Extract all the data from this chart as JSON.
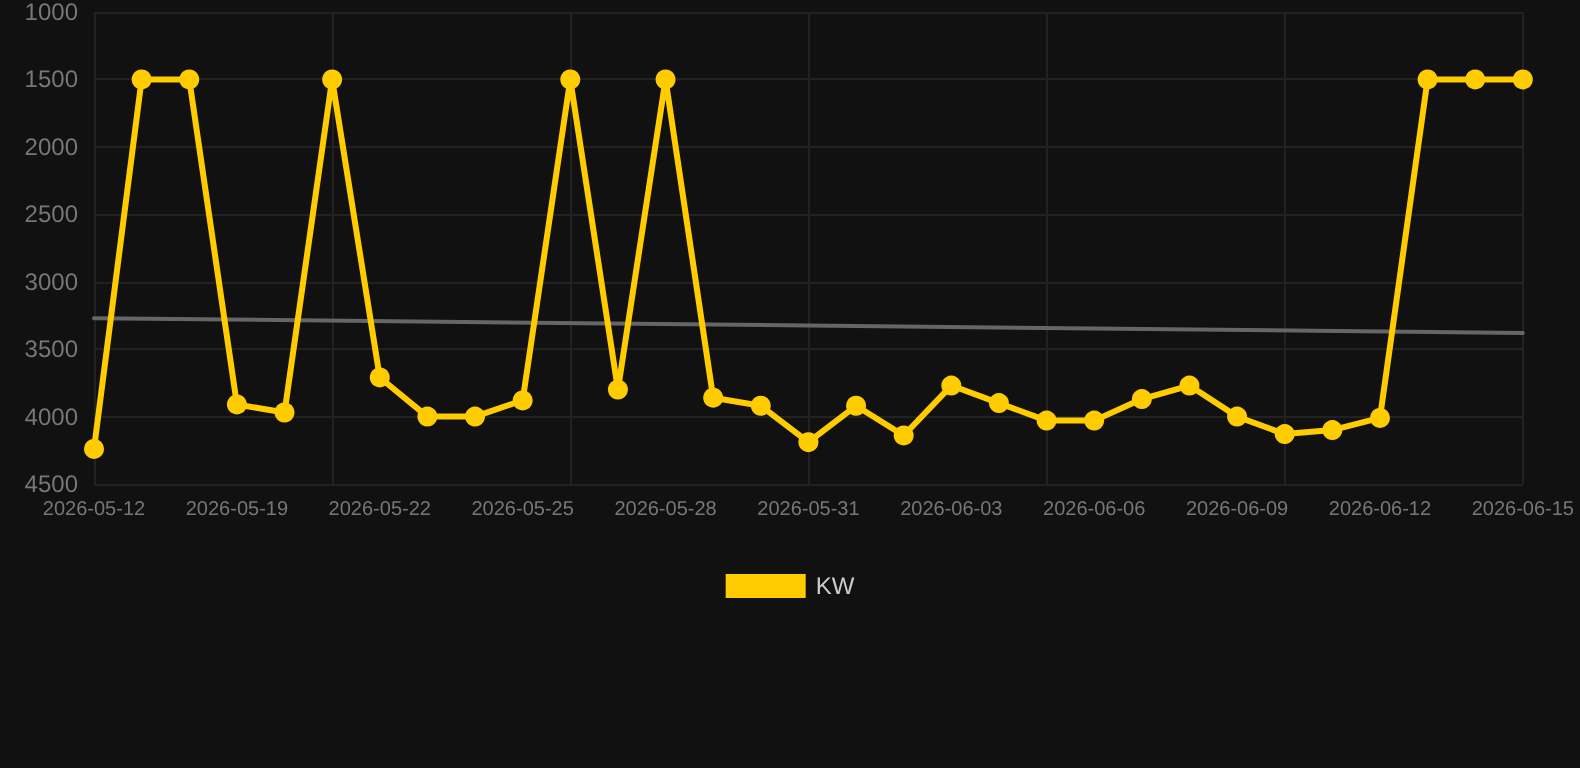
{
  "chart_data": {
    "type": "line",
    "categories": [
      "2026-05-12",
      null,
      null,
      "2026-05-19",
      null,
      null,
      "2026-05-22",
      null,
      null,
      "2026-05-25",
      null,
      null,
      "2026-05-28",
      null,
      null,
      "2026-05-31",
      null,
      null,
      "2026-06-03",
      null,
      null,
      "2026-06-06",
      null,
      null,
      "2026-06-09",
      null,
      null,
      "2026-06-12",
      null,
      null,
      "2026-06-15"
    ],
    "series": [
      {
        "name": "KW",
        "color": "#ffcc00",
        "values": [
          4240,
          1500,
          1500,
          3910,
          3970,
          1500,
          3710,
          4000,
          4000,
          3880,
          1500,
          3800,
          1500,
          3860,
          3920,
          4190,
          3920,
          4140,
          3770,
          3900,
          4030,
          4030,
          3870,
          3770,
          4000,
          4130,
          4100,
          4010,
          1500,
          1500,
          1500
        ]
      },
      {
        "type": "line",
        "color": "#666666",
        "marker": "none",
        "values": [
          3270,
          null,
          null,
          null,
          null,
          null,
          null,
          null,
          null,
          null,
          null,
          null,
          null,
          null,
          null,
          null,
          null,
          null,
          null,
          null,
          null,
          null,
          null,
          null,
          null,
          null,
          null,
          null,
          null,
          null,
          3380
        ]
      }
    ],
    "ylim": [
      4500,
      1000
    ],
    "yticks": [
      1000,
      1500,
      2000,
      2500,
      3000,
      3500,
      4000,
      4500
    ],
    "grid": true,
    "legend": "bottom",
    "marker": "circle",
    "line_style": "solid"
  }
}
